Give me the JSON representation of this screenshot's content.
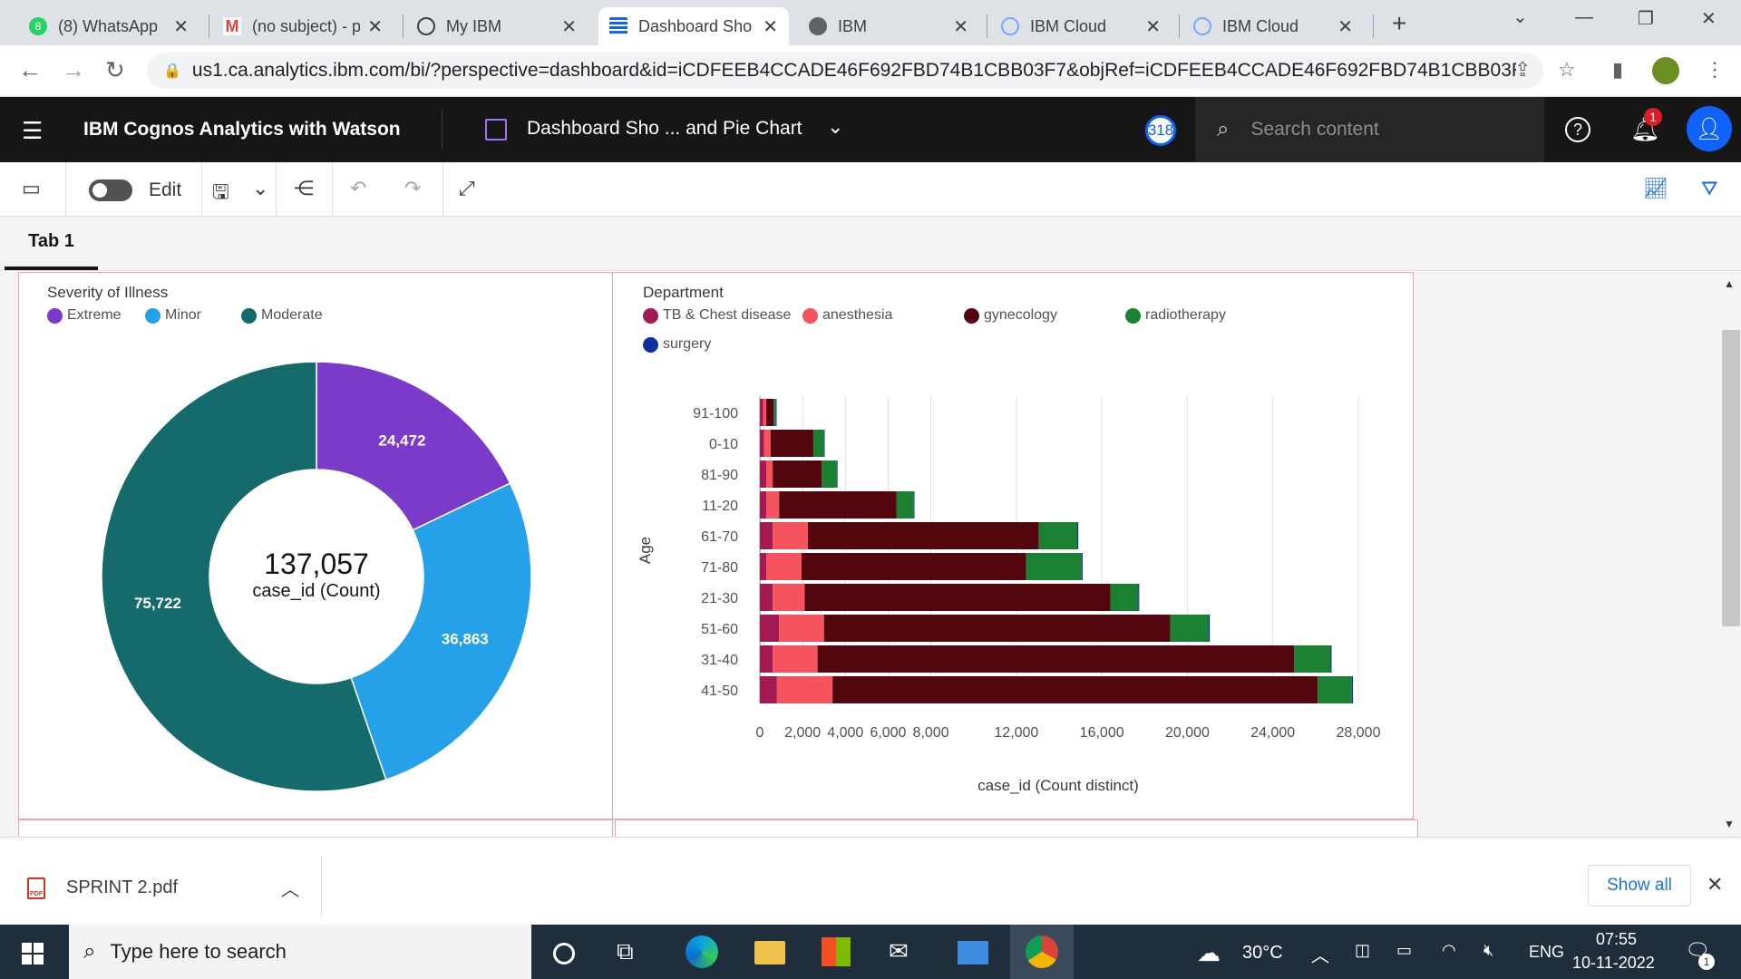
{
  "browser": {
    "tabs": [
      {
        "label": "(8) WhatsApp",
        "icon": "whatsapp-icon",
        "color": "#25d366",
        "badge": "8"
      },
      {
        "label": "(no subject) - p",
        "icon": "gmail-icon",
        "color": "#ea4335"
      },
      {
        "label": "My IBM",
        "icon": "ibm-bee-icon",
        "color": "#3c4043"
      },
      {
        "label": "Dashboard Sho",
        "icon": "cognos-icon",
        "color": "#0f62fe",
        "active": true
      },
      {
        "label": "IBM",
        "icon": "globe-icon",
        "color": "#5f6368"
      },
      {
        "label": "IBM Cloud",
        "icon": "cloud-icon",
        "color": "#78a9ff"
      },
      {
        "label": "IBM Cloud",
        "icon": "cloud-icon",
        "color": "#78a9ff"
      }
    ],
    "url": "us1.ca.analytics.ibm.com/bi/?perspective=dashboard&id=iCDFEEB4CCADE46F692FBD74B1CBB03F7&objRef=iCDFEEB4CCADE46F692FBD74B1CBB03F7&o..."
  },
  "app": {
    "brand": "IBM Cognos Analytics with Watson",
    "dashboard_title": "Dashboard Sho ... and Pie Chart",
    "badge_count": "318",
    "search_placeholder": "Search content",
    "notification_count": "1"
  },
  "toolbar": {
    "edit_label": "Edit"
  },
  "tabs": [
    {
      "label": "Tab 1",
      "active": true
    }
  ],
  "donut": {
    "legend_title": "Severity of Illness",
    "legend": [
      {
        "label": "Extreme",
        "color": "#7b3ac9"
      },
      {
        "label": "Minor",
        "color": "#24a1e8"
      },
      {
        "label": "Moderate",
        "color": "#156b6b"
      }
    ],
    "center_value": "137,057",
    "center_label": "case_id (Count)"
  },
  "bar": {
    "legend_title": "Department",
    "legend": [
      {
        "label": "TB & Chest disease",
        "color": "#a31a52"
      },
      {
        "label": "anesthesia",
        "color": "#f5535d"
      },
      {
        "label": "gynecology",
        "color": "#54060e"
      },
      {
        "label": "radiotherapy",
        "color": "#1b8032"
      },
      {
        "label": "surgery",
        "color": "#0f2fa0"
      }
    ]
  },
  "chart_data": [
    {
      "type": "pie",
      "donut": true,
      "categories": [
        "Extreme",
        "Minor",
        "Moderate"
      ],
      "values": [
        24472,
        36863,
        75722
      ],
      "data_labels": [
        "24,472",
        "36,863",
        "75,722"
      ],
      "colors": [
        "#7b3ac9",
        "#24a1e8",
        "#156b6b"
      ],
      "center": "137,057",
      "center_caption": "case_id (Count)",
      "legend_title": "Severity of Illness"
    },
    {
      "type": "bar",
      "orientation": "horizontal",
      "stacked": true,
      "categories": [
        "91-100",
        "0-10",
        "81-90",
        "11-20",
        "61-70",
        "71-80",
        "21-30",
        "51-60",
        "31-40",
        "41-50"
      ],
      "series": [
        {
          "name": "TB & Chest disease",
          "values": [
            150,
            200,
            300,
            300,
            600,
            300,
            600,
            900,
            600,
            800
          ]
        },
        {
          "name": "anesthesia",
          "values": [
            150,
            300,
            300,
            600,
            1650,
            1650,
            1500,
            2100,
            2100,
            2600
          ]
        },
        {
          "name": "gynecology",
          "values": [
            350,
            2000,
            2300,
            5500,
            10800,
            10500,
            14300,
            16200,
            22300,
            22700
          ]
        },
        {
          "name": "radiotherapy",
          "values": [
            100,
            500,
            700,
            800,
            1800,
            2600,
            1300,
            1800,
            1700,
            1600
          ]
        },
        {
          "name": "surgery",
          "values": [
            30,
            20,
            30,
            30,
            50,
            50,
            50,
            50,
            50,
            50
          ]
        }
      ],
      "colors": [
        "#a31a52",
        "#f5535d",
        "#54060e",
        "#1b8032",
        "#0f2fa0"
      ],
      "xlabel": "case_id (Count distinct)",
      "ylabel": "Age",
      "xlim": [
        0,
        28000
      ],
      "xticks": [
        0,
        2000,
        4000,
        6000,
        8000,
        12000,
        16000,
        20000,
        24000,
        28000
      ],
      "xtick_labels": [
        "0",
        "2,000",
        "4,000",
        "6,000",
        "8,000",
        "12,000",
        "16,000",
        "20,000",
        "24,000",
        "28,000"
      ],
      "legend_title": "Department",
      "grid": true
    }
  ],
  "downloads": {
    "file": "SPRINT 2.pdf",
    "show_all": "Show all"
  },
  "taskbar": {
    "search_placeholder": "Type here to search",
    "temperature": "30°C",
    "language": "ENG",
    "time": "07:55",
    "date": "10-11-2022",
    "notif_count": "1"
  }
}
